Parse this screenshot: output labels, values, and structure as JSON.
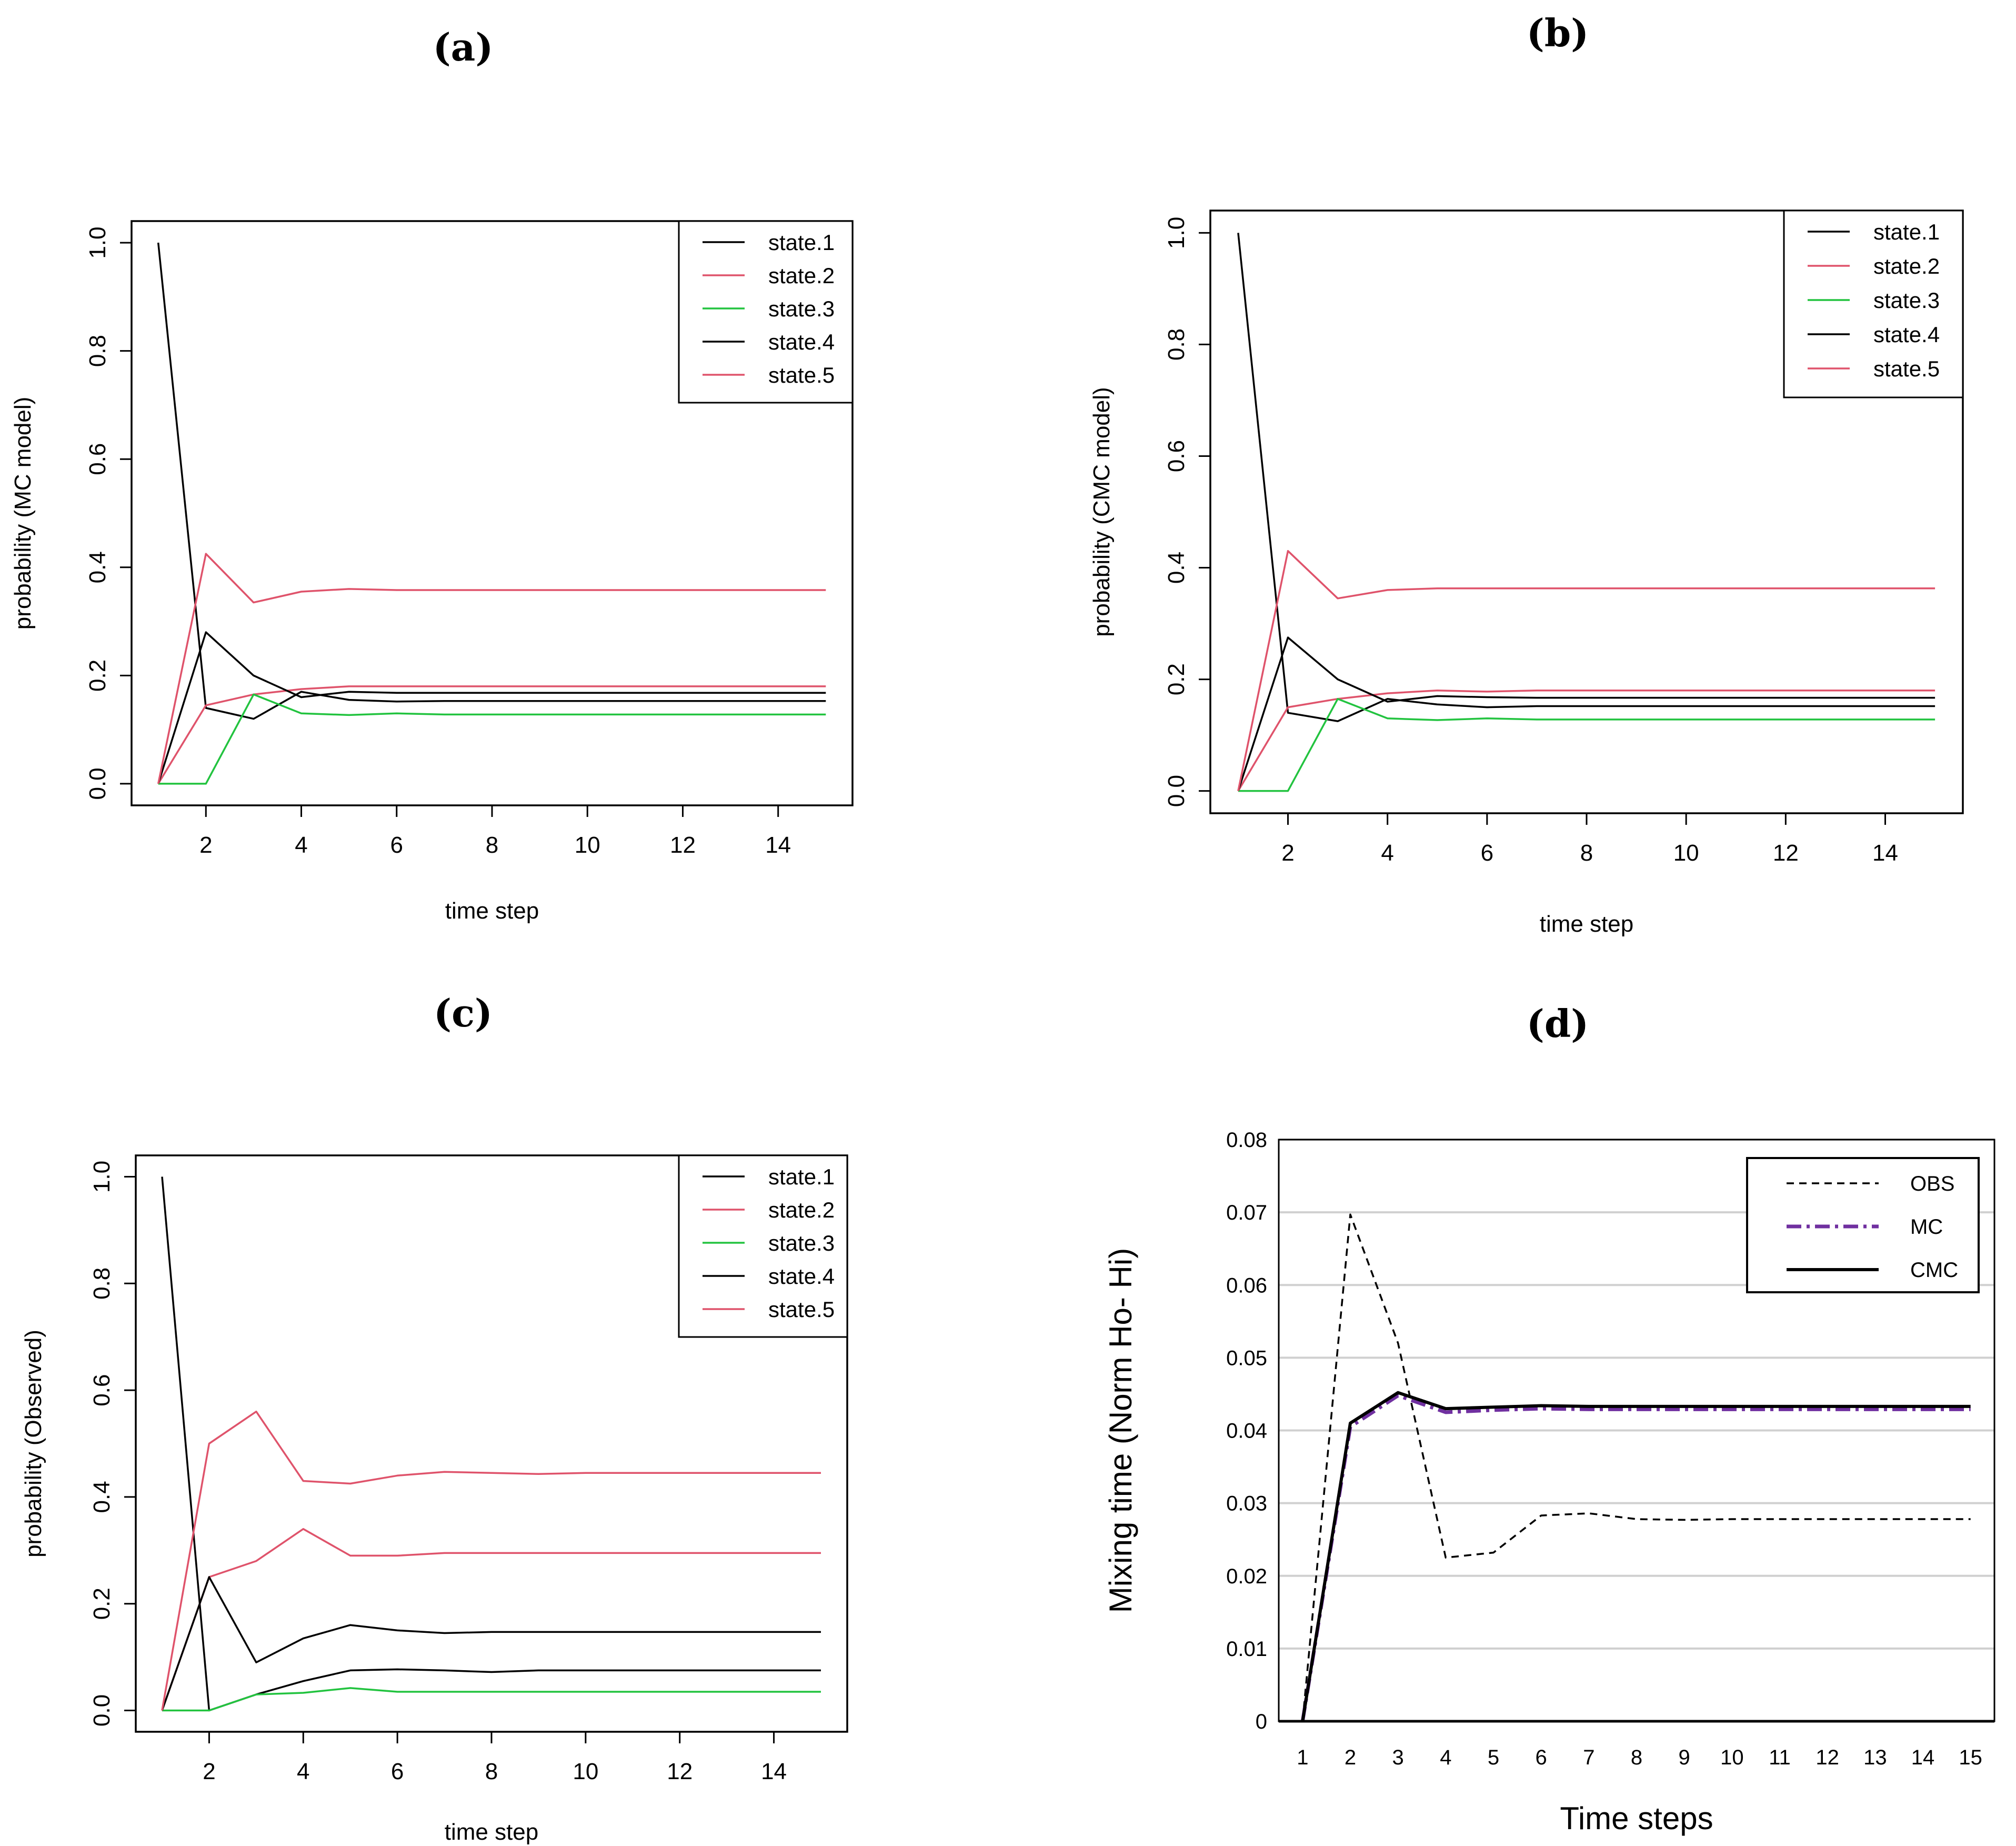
{
  "chart_data": [
    {
      "panel": "(a)",
      "type": "line",
      "xlabel": "time step",
      "ylabel": "probability (MC model)",
      "xlim": [
        1,
        15
      ],
      "ylim": [
        0,
        1
      ],
      "x_ticks": [
        "2",
        "4",
        "6",
        "8",
        "10",
        "12",
        "14"
      ],
      "y_ticks": [
        "0.0",
        "0.2",
        "0.4",
        "0.6",
        "0.8",
        "1.0"
      ],
      "legend_position": "top-right",
      "x": [
        1,
        2,
        3,
        4,
        5,
        6,
        7,
        8,
        9,
        10,
        11,
        12,
        13,
        14,
        15
      ],
      "series": [
        {
          "name": "state.1",
          "color": "#000000",
          "values": [
            1.0,
            0.14,
            0.12,
            0.17,
            0.155,
            0.152,
            0.153,
            0.153,
            0.153,
            0.153,
            0.153,
            0.153,
            0.153,
            0.153,
            0.153
          ]
        },
        {
          "name": "state.2",
          "color": "#DF536B",
          "values": [
            0.0,
            0.145,
            0.165,
            0.175,
            0.18,
            0.18,
            0.18,
            0.18,
            0.18,
            0.18,
            0.18,
            0.18,
            0.18,
            0.18,
            0.18
          ]
        },
        {
          "name": "state.3",
          "color": "#22C33F",
          "values": [
            0.0,
            0.0,
            0.165,
            0.13,
            0.127,
            0.13,
            0.128,
            0.128,
            0.128,
            0.128,
            0.128,
            0.128,
            0.128,
            0.128,
            0.128
          ]
        },
        {
          "name": "state.4",
          "color": "#000000",
          "values": [
            0.0,
            0.28,
            0.2,
            0.16,
            0.17,
            0.168,
            0.168,
            0.168,
            0.168,
            0.168,
            0.168,
            0.168,
            0.168,
            0.168,
            0.168
          ]
        },
        {
          "name": "state.5",
          "color": "#DF536B",
          "values": [
            0.0,
            0.425,
            0.335,
            0.355,
            0.36,
            0.358,
            0.358,
            0.358,
            0.358,
            0.358,
            0.358,
            0.358,
            0.358,
            0.358,
            0.358
          ]
        }
      ]
    },
    {
      "panel": "(b)",
      "type": "line",
      "xlabel": "time step",
      "ylabel": "probability (CMC model)",
      "xlim": [
        1,
        15
      ],
      "ylim": [
        0,
        1
      ],
      "x_ticks": [
        "2",
        "4",
        "6",
        "8",
        "10",
        "12",
        "14"
      ],
      "y_ticks": [
        "0.0",
        "0.2",
        "0.4",
        "0.6",
        "0.8",
        "1.0"
      ],
      "legend_position": "top-right",
      "x": [
        1,
        2,
        3,
        4,
        5,
        6,
        7,
        8,
        9,
        10,
        11,
        12,
        13,
        14,
        15
      ],
      "series": [
        {
          "name": "state.1",
          "color": "#000000",
          "values": [
            1.0,
            0.14,
            0.125,
            0.165,
            0.155,
            0.15,
            0.152,
            0.152,
            0.152,
            0.152,
            0.152,
            0.152,
            0.152,
            0.152,
            0.152
          ]
        },
        {
          "name": "state.2",
          "color": "#DF536B",
          "values": [
            0.0,
            0.15,
            0.165,
            0.175,
            0.18,
            0.178,
            0.18,
            0.18,
            0.18,
            0.18,
            0.18,
            0.18,
            0.18,
            0.18,
            0.18
          ]
        },
        {
          "name": "state.3",
          "color": "#22C33F",
          "values": [
            0.0,
            0.0,
            0.165,
            0.13,
            0.127,
            0.13,
            0.128,
            0.128,
            0.128,
            0.128,
            0.128,
            0.128,
            0.128,
            0.128,
            0.128
          ]
        },
        {
          "name": "state.4",
          "color": "#000000",
          "values": [
            0.0,
            0.275,
            0.2,
            0.16,
            0.17,
            0.168,
            0.167,
            0.167,
            0.167,
            0.167,
            0.167,
            0.167,
            0.167,
            0.167,
            0.167
          ]
        },
        {
          "name": "state.5",
          "color": "#DF536B",
          "values": [
            0.0,
            0.43,
            0.345,
            0.36,
            0.363,
            0.363,
            0.363,
            0.363,
            0.363,
            0.363,
            0.363,
            0.363,
            0.363,
            0.363,
            0.363
          ]
        }
      ]
    },
    {
      "panel": "(c)",
      "type": "line",
      "xlabel": "time step",
      "ylabel": "probability (Observed)",
      "xlim": [
        1,
        15
      ],
      "ylim": [
        0,
        1
      ],
      "x_ticks": [
        "2",
        "4",
        "6",
        "8",
        "10",
        "12",
        "14"
      ],
      "y_ticks": [
        "0.0",
        "0.2",
        "0.4",
        "0.6",
        "0.8",
        "1.0"
      ],
      "legend_position": "top-right",
      "x": [
        1,
        2,
        3,
        4,
        5,
        6,
        7,
        8,
        9,
        10,
        11,
        12,
        13,
        14,
        15
      ],
      "series": [
        {
          "name": "state.1",
          "color": "#000000",
          "values": [
            1.0,
            0.0,
            0.03,
            0.055,
            0.075,
            0.077,
            0.075,
            0.072,
            0.075,
            0.075,
            0.075,
            0.075,
            0.075,
            0.075,
            0.075
          ]
        },
        {
          "name": "state.2",
          "color": "#DF536B",
          "values": [
            0.0,
            0.25,
            0.28,
            0.34,
            0.29,
            0.29,
            0.295,
            0.295,
            0.295,
            0.295,
            0.295,
            0.295,
            0.295,
            0.295,
            0.295
          ]
        },
        {
          "name": "state.3",
          "color": "#22C33F",
          "values": [
            0.0,
            0.0,
            0.03,
            0.033,
            0.042,
            0.035,
            0.035,
            0.035,
            0.035,
            0.035,
            0.035,
            0.035,
            0.035,
            0.035,
            0.035
          ]
        },
        {
          "name": "state.4",
          "color": "#000000",
          "values": [
            0.0,
            0.25,
            0.09,
            0.135,
            0.16,
            0.15,
            0.145,
            0.147,
            0.147,
            0.147,
            0.147,
            0.147,
            0.147,
            0.147,
            0.147
          ]
        },
        {
          "name": "state.5",
          "color": "#DF536B",
          "values": [
            0.0,
            0.5,
            0.56,
            0.43,
            0.425,
            0.44,
            0.447,
            0.445,
            0.443,
            0.445,
            0.445,
            0.445,
            0.445,
            0.445,
            0.445
          ]
        }
      ]
    },
    {
      "panel": "(d)",
      "type": "line",
      "xlabel": "Time steps",
      "ylabel": "Mixing time (Norm Ho- Hi)",
      "xlim": [
        0.5,
        15.5
      ],
      "ylim": [
        0,
        0.08
      ],
      "grid": true,
      "x_ticks": [
        "1",
        "2",
        "3",
        "4",
        "5",
        "6",
        "7",
        "8",
        "9",
        "10",
        "11",
        "12",
        "13",
        "14",
        "15"
      ],
      "y_ticks": [
        "0",
        "0.01",
        "0.02",
        "0.03",
        "0.04",
        "0.05",
        "0.06",
        "0.07",
        "0.08"
      ],
      "legend_position": "top-right",
      "x": [
        1,
        2,
        3,
        4,
        5,
        6,
        7,
        8,
        9,
        10,
        11,
        12,
        13,
        14,
        15
      ],
      "series": [
        {
          "name": "OBS",
          "color": "#000000",
          "style": "dashed",
          "values": [
            0.0,
            0.0697,
            0.052,
            0.0225,
            0.0232,
            0.0283,
            0.0286,
            0.0278,
            0.0277,
            0.0278,
            0.0278,
            0.0278,
            0.0278,
            0.0278,
            0.0278
          ]
        },
        {
          "name": "MC",
          "color": "#7030A0",
          "style": "dashdot",
          "values": [
            0.0,
            0.0405,
            0.0448,
            0.0425,
            0.0428,
            0.043,
            0.0429,
            0.0429,
            0.0429,
            0.0429,
            0.0429,
            0.0429,
            0.0429,
            0.0429,
            0.0429
          ]
        },
        {
          "name": "CMC",
          "color": "#000000",
          "style": "solid",
          "values": [
            0.0,
            0.041,
            0.0452,
            0.043,
            0.0432,
            0.0434,
            0.0433,
            0.0433,
            0.0433,
            0.0433,
            0.0433,
            0.0433,
            0.0433,
            0.0433,
            0.0433
          ]
        }
      ]
    }
  ]
}
